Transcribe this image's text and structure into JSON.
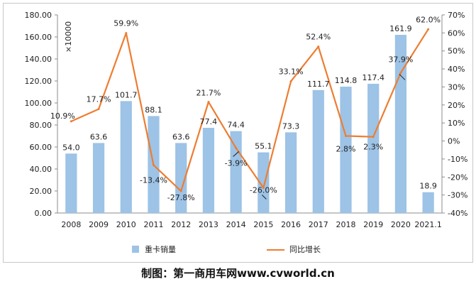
{
  "chart_data": {
    "type": "bar+line",
    "categories": [
      "2008",
      "2009",
      "2010",
      "2011",
      "2012",
      "2013",
      "2014",
      "2015",
      "2016",
      "2017",
      "2018",
      "2019",
      "2020",
      "2021.1"
    ],
    "series": [
      {
        "name": "重卡销量",
        "type": "bar",
        "axis": "left",
        "color": "#9dc3e6",
        "values": [
          54.0,
          63.6,
          101.7,
          88.1,
          63.6,
          77.4,
          74.4,
          55.1,
          73.3,
          111.7,
          114.8,
          117.4,
          161.9,
          18.9
        ],
        "labels": [
          "54.0",
          "63.6",
          "101.7",
          "88.1",
          "63.6",
          "77.4",
          "74.4",
          "55.1",
          "73.3",
          "111.7",
          "114.8",
          "117.4",
          "161.9",
          "18.9"
        ]
      },
      {
        "name": "同比增长",
        "type": "line",
        "axis": "right",
        "color": "#ed7d31",
        "values": [
          10.9,
          17.7,
          59.9,
          -13.4,
          -27.8,
          21.7,
          -3.9,
          -26.0,
          33.1,
          52.4,
          2.8,
          2.3,
          37.9,
          62.0
        ],
        "labels": [
          "10.9%",
          "17.7%",
          "59.9%",
          "-13.4%",
          "-27.8%",
          "21.7%",
          "-3.9%",
          "-26.0%",
          "33.1%",
          "52.4%",
          "2.8%",
          "2.3%",
          "37.9%",
          "62.0%"
        ]
      }
    ],
    "left_axis": {
      "min": 0,
      "max": 180,
      "step": 20,
      "ticks": [
        "0.00",
        "20.00",
        "40.00",
        "60.00",
        "80.00",
        "100.00",
        "120.00",
        "140.00",
        "160.00",
        "180.00"
      ]
    },
    "right_axis": {
      "min": -40,
      "max": 70,
      "step": 10,
      "ticks": [
        "-40%",
        "-30%",
        "-20%",
        "-10%",
        "0%",
        "10%",
        "20%",
        "30%",
        "40%",
        "50%",
        "60%",
        "70%"
      ]
    },
    "unit_label": "×10000",
    "legend": [
      {
        "name": "重卡销量",
        "marker": "bar"
      },
      {
        "name": "同比增长",
        "marker": "line"
      }
    ],
    "legend_position": "bottom"
  },
  "credit": "制图：第一商用车网www.cvworld.cn"
}
